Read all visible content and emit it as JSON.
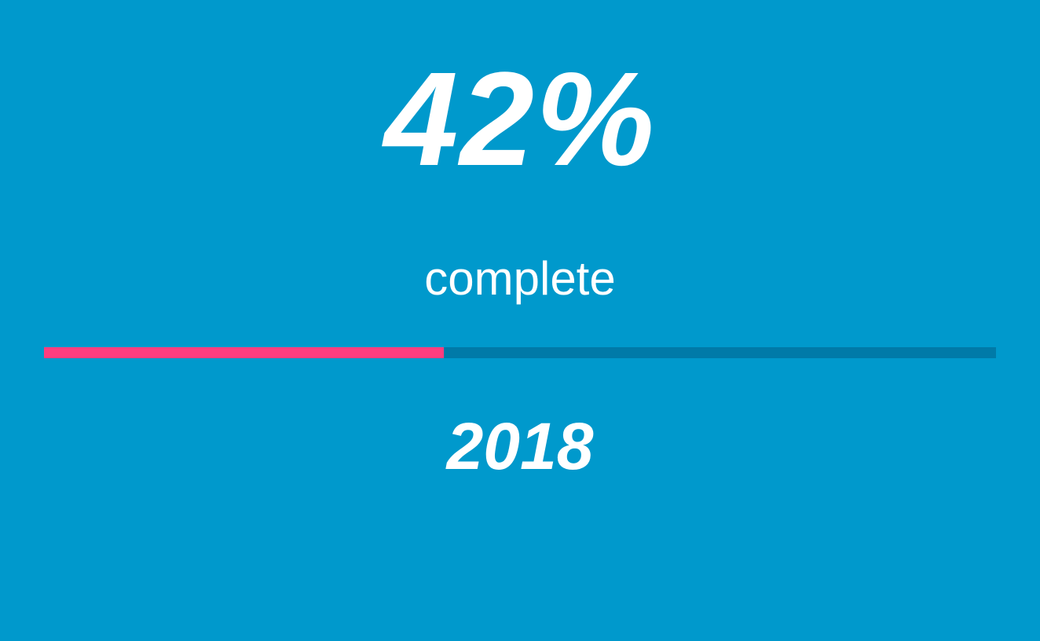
{
  "progress": {
    "percent_text": "42%",
    "fraction": 0.42,
    "status_label": "complete",
    "year": "2018"
  },
  "colors": {
    "background": "#0099cc",
    "track": "#007aa8",
    "fill": "#ff3d7f",
    "text": "#ffffff"
  }
}
